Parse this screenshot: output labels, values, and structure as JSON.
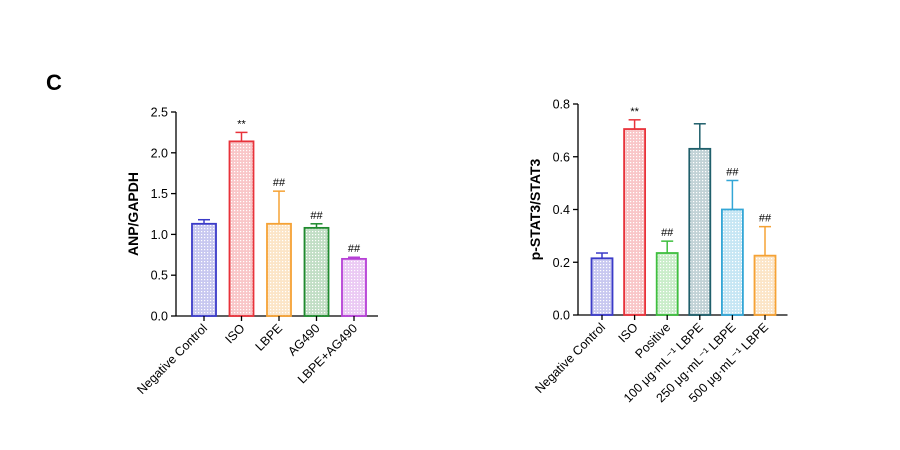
{
  "panel_label": "C",
  "chart_data": [
    {
      "type": "bar",
      "ylabel": "ANP/GAPDH",
      "ylim": [
        0,
        2.5
      ],
      "yticks": [
        "0.0",
        "0.5",
        "1.0",
        "1.5",
        "2.0",
        "2.5"
      ],
      "categories": [
        "Negative Control",
        "ISO",
        "LBPE",
        "AG490",
        "LBPE+AG490"
      ],
      "values": [
        1.13,
        2.14,
        1.13,
        1.08,
        0.7
      ],
      "errors": [
        0.05,
        0.11,
        0.4,
        0.05,
        0.02
      ],
      "annotations": [
        "",
        "**",
        "##",
        "##",
        "##"
      ],
      "colors": [
        "#3b3bc8",
        "#e8323a",
        "#f5a235",
        "#1f8a2e",
        "#b63fd6"
      ]
    },
    {
      "type": "bar",
      "ylabel": "p-STAT3/STAT3",
      "ylim": [
        0,
        0.8
      ],
      "yticks": [
        "0.0",
        "0.2",
        "0.4",
        "0.6",
        "0.8"
      ],
      "categories": [
        "Negative Control",
        "ISO",
        "Positive",
        "100 μg·mL⁻¹ LBPE",
        "250 μg·mL⁻¹ LBPE",
        "500 μg·mL⁻¹ LBPE"
      ],
      "values": [
        0.215,
        0.705,
        0.235,
        0.63,
        0.4,
        0.225
      ],
      "errors": [
        0.02,
        0.035,
        0.045,
        0.095,
        0.11,
        0.11
      ],
      "annotations": [
        "",
        "**",
        "##",
        "",
        "##",
        "##"
      ],
      "colors": [
        "#3b3bc8",
        "#e8323a",
        "#3fbf3f",
        "#1f5f6b",
        "#33a6d6",
        "#f5a235"
      ]
    }
  ]
}
